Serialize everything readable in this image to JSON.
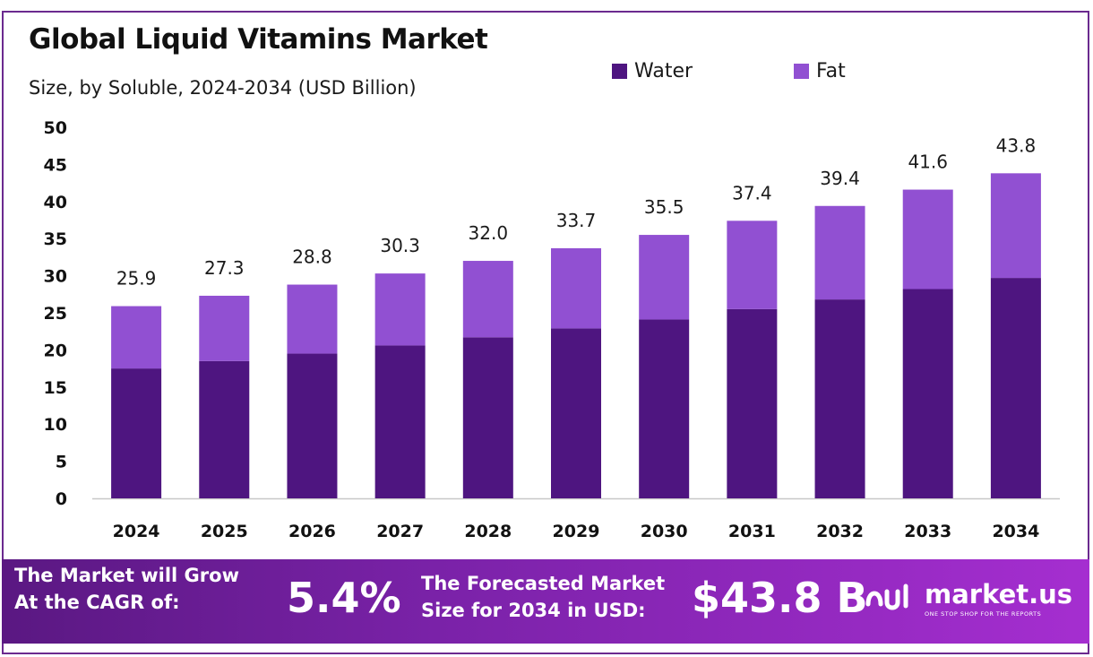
{
  "chart_data": {
    "type": "bar",
    "stacked": true,
    "title": "Global Liquid Vitamins Market",
    "subtitle": "Size, by Soluble, 2024-2034 (USD Billion)",
    "categories": [
      "2024",
      "2025",
      "2026",
      "2027",
      "2028",
      "2029",
      "2030",
      "2031",
      "2032",
      "2033",
      "2034"
    ],
    "series": [
      {
        "name": "Water",
        "color": "#4e1580",
        "values": [
          17.5,
          18.5,
          19.5,
          20.6,
          21.7,
          22.9,
          24.1,
          25.5,
          26.8,
          28.2,
          29.7
        ]
      },
      {
        "name": "Fat",
        "color": "#9150d2",
        "values": [
          8.4,
          8.8,
          9.3,
          9.7,
          10.3,
          10.8,
          11.4,
          11.9,
          12.6,
          13.4,
          14.1
        ]
      }
    ],
    "totals": [
      "25.9",
      "27.3",
      "28.8",
      "30.3",
      "32.0",
      "33.7",
      "35.5",
      "37.4",
      "39.4",
      "41.6",
      "43.8"
    ],
    "ylim": [
      0,
      50
    ],
    "yticks": [
      0,
      5,
      10,
      15,
      20,
      25,
      30,
      35,
      40,
      45,
      50
    ],
    "grid": false,
    "legend_position": "top"
  },
  "banner": {
    "cagr_label": "The Market will Grow\nAt the CAGR of:",
    "cagr_value": "5.4%",
    "forecast_label": "The Forecasted Market\nSize for 2034 in USD:",
    "forecast_value": "$43.8 B"
  },
  "brand": {
    "name": "market.us",
    "tagline": "ONE STOP SHOP FOR THE REPORTS",
    "icon": "market-us-logo-icon"
  }
}
